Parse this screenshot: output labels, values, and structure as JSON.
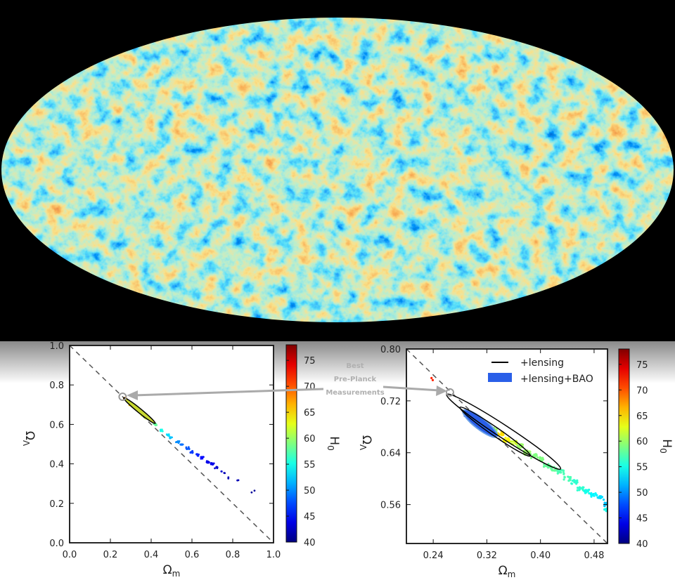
{
  "cmb_map": {
    "projection": "mollweide",
    "colors": [
      "#0a2a9a",
      "#2f6fe0",
      "#7fd0e0",
      "#e8d060",
      "#e08a30",
      "#b02a10"
    ]
  },
  "annotation": {
    "line1": "Best",
    "line2": "Pre-Planck",
    "line3": "Measurements"
  },
  "chart_data": [
    {
      "type": "scatter",
      "xlabel": "Ω",
      "xlabel_sub": "m",
      "ylabel": "Ω",
      "ylabel_sub": "Λ",
      "xlim": [
        0.0,
        1.0
      ],
      "ylim": [
        0.0,
        1.0
      ],
      "xticks": [
        "0.0",
        "0.2",
        "0.4",
        "0.6",
        "0.8",
        "1.0"
      ],
      "yticks": [
        "0.0",
        "0.2",
        "0.4",
        "0.6",
        "0.8",
        "1.0"
      ],
      "colorbar": {
        "label": "H",
        "label_sub": "0",
        "range": [
          40,
          78
        ],
        "ticks": [
          "40",
          "45",
          "50",
          "55",
          "60",
          "65",
          "70",
          "75"
        ],
        "colormap": "jet"
      },
      "flat_line": "Ω_Λ = 1 − Ω_m",
      "best_pre_planck": [
        0.26,
        0.74
      ],
      "contour": {
        "from": [
          0.265,
          0.735
        ],
        "to": [
          0.42,
          0.605
        ]
      },
      "points": [
        [
          0.27,
          0.73,
          68
        ],
        [
          0.3,
          0.7,
          66
        ],
        [
          0.33,
          0.68,
          64
        ],
        [
          0.36,
          0.65,
          63
        ],
        [
          0.38,
          0.63,
          62
        ],
        [
          0.42,
          0.6,
          58
        ],
        [
          0.45,
          0.57,
          55
        ],
        [
          0.48,
          0.545,
          53
        ],
        [
          0.5,
          0.53,
          52
        ],
        [
          0.53,
          0.51,
          50
        ],
        [
          0.55,
          0.5,
          49
        ],
        [
          0.58,
          0.48,
          48
        ],
        [
          0.6,
          0.46,
          47
        ],
        [
          0.63,
          0.445,
          46
        ],
        [
          0.65,
          0.43,
          45
        ],
        [
          0.68,
          0.41,
          44
        ],
        [
          0.7,
          0.4,
          44
        ],
        [
          0.72,
          0.38,
          43
        ],
        [
          0.74,
          0.36,
          43
        ],
        [
          0.76,
          0.35,
          42
        ],
        [
          0.78,
          0.33,
          42
        ],
        [
          0.82,
          0.32,
          42
        ],
        [
          0.9,
          0.26,
          41
        ]
      ]
    },
    {
      "type": "scatter",
      "xlabel": "Ω",
      "xlabel_sub": "m",
      "ylabel": "Ω",
      "ylabel_sub": "Λ",
      "xlim": [
        0.2,
        0.5
      ],
      "ylim": [
        0.5,
        0.8
      ],
      "xticks": [
        "0.24",
        "0.32",
        "0.40",
        "0.48"
      ],
      "yticks": [
        "0.56",
        "0.64",
        "0.72",
        "0.80"
      ],
      "colorbar": {
        "label": "H",
        "label_sub": "0",
        "range": [
          40,
          78
        ],
        "ticks": [
          "40",
          "45",
          "50",
          "55",
          "60",
          "65",
          "70",
          "75"
        ],
        "colormap": "jet"
      },
      "legend": {
        "placement": "top-right",
        "entries": [
          {
            "label": "+lensing",
            "color": "#000000"
          },
          {
            "label": "+lensing+BAO",
            "color": "#2a5fe8"
          }
        ]
      },
      "best_pre_planck": [
        0.265,
        0.733
      ],
      "lensing_contour": {
        "from": [
          0.26,
          0.73
        ],
        "to": [
          0.43,
          0.615
        ]
      },
      "lensing_inner_contour": {
        "from": [
          0.28,
          0.71
        ],
        "to": [
          0.385,
          0.635
        ]
      },
      "bao_contour": {
        "from": [
          0.285,
          0.705
        ],
        "to": [
          0.335,
          0.665
        ]
      },
      "points": [
        [
          0.29,
          0.7,
          47
        ],
        [
          0.3,
          0.695,
          46
        ],
        [
          0.31,
          0.69,
          48
        ],
        [
          0.32,
          0.68,
          50
        ],
        [
          0.33,
          0.675,
          60
        ],
        [
          0.34,
          0.67,
          65
        ],
        [
          0.35,
          0.66,
          64
        ],
        [
          0.36,
          0.655,
          62
        ],
        [
          0.37,
          0.65,
          60
        ],
        [
          0.38,
          0.64,
          60
        ],
        [
          0.39,
          0.635,
          59
        ],
        [
          0.4,
          0.63,
          59
        ],
        [
          0.41,
          0.62,
          58
        ],
        [
          0.42,
          0.615,
          58
        ],
        [
          0.43,
          0.61,
          57
        ],
        [
          0.44,
          0.6,
          57
        ],
        [
          0.45,
          0.595,
          56
        ],
        [
          0.46,
          0.585,
          56
        ],
        [
          0.47,
          0.58,
          55
        ],
        [
          0.48,
          0.575,
          54
        ],
        [
          0.49,
          0.57,
          53
        ],
        [
          0.5,
          0.56,
          52
        ],
        [
          0.5,
          0.553,
          55
        ],
        [
          0.235,
          0.755,
          72
        ]
      ]
    }
  ]
}
